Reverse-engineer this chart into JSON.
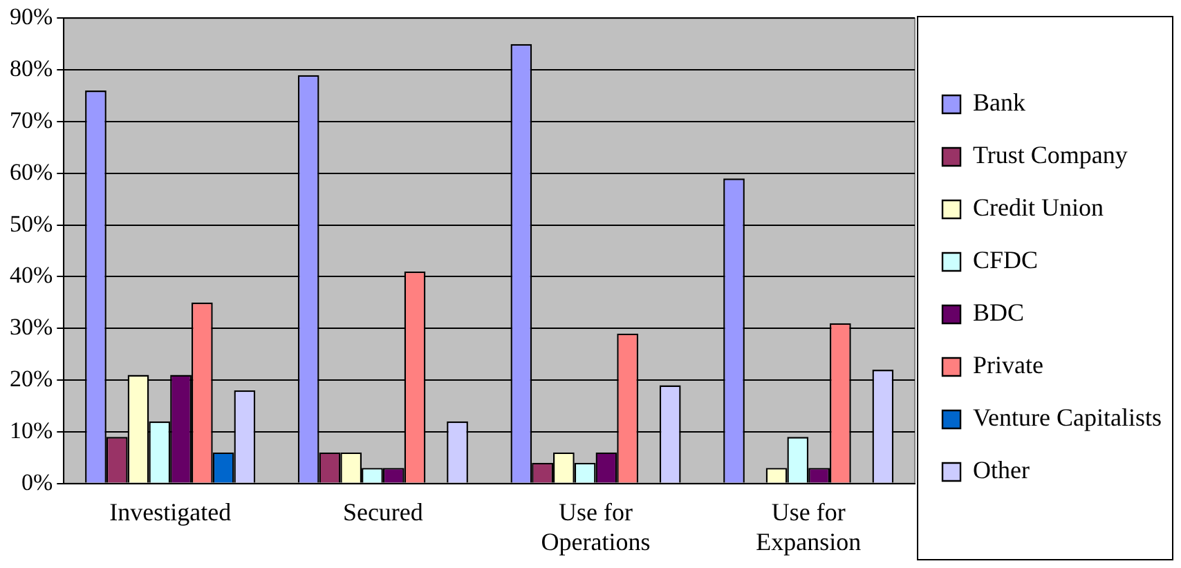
{
  "chart_data": {
    "type": "bar",
    "categories": [
      "Investigated",
      "Secured",
      "Use for Operations",
      "Use for Expansion"
    ],
    "series": [
      {
        "name": "Bank",
        "color": "#9999ff",
        "values": [
          76,
          79,
          85,
          59
        ]
      },
      {
        "name": "Trust Company",
        "color": "#993366",
        "values": [
          9,
          6,
          4,
          0
        ]
      },
      {
        "name": "Credit Union",
        "color": "#ffffcc",
        "values": [
          21,
          6,
          6,
          3
        ]
      },
      {
        "name": "CFDC",
        "color": "#ccffff",
        "values": [
          12,
          3,
          4,
          9
        ]
      },
      {
        "name": "BDC",
        "color": "#660066",
        "values": [
          21,
          3,
          6,
          3
        ]
      },
      {
        "name": "Private",
        "color": "#ff8080",
        "values": [
          35,
          41,
          29,
          31
        ]
      },
      {
        "name": "Venture Capitalists",
        "color": "#0066cc",
        "values": [
          6,
          0,
          0,
          0
        ]
      },
      {
        "name": "Other",
        "color": "#ccccff",
        "values": [
          18,
          12,
          19,
          22
        ]
      }
    ],
    "ylim": [
      0,
      90
    ],
    "yticks": [
      {
        "value": 0,
        "label": "0%"
      },
      {
        "value": 10,
        "label": "10%"
      },
      {
        "value": 20,
        "label": "20%"
      },
      {
        "value": 30,
        "label": "30%"
      },
      {
        "value": 40,
        "label": "40%"
      },
      {
        "value": 50,
        "label": "50%"
      },
      {
        "value": 60,
        "label": "60%"
      },
      {
        "value": 70,
        "label": "70%"
      },
      {
        "value": 80,
        "label": "80%"
      },
      {
        "value": 90,
        "label": "90%"
      }
    ],
    "grid": "y",
    "legend": "right"
  }
}
